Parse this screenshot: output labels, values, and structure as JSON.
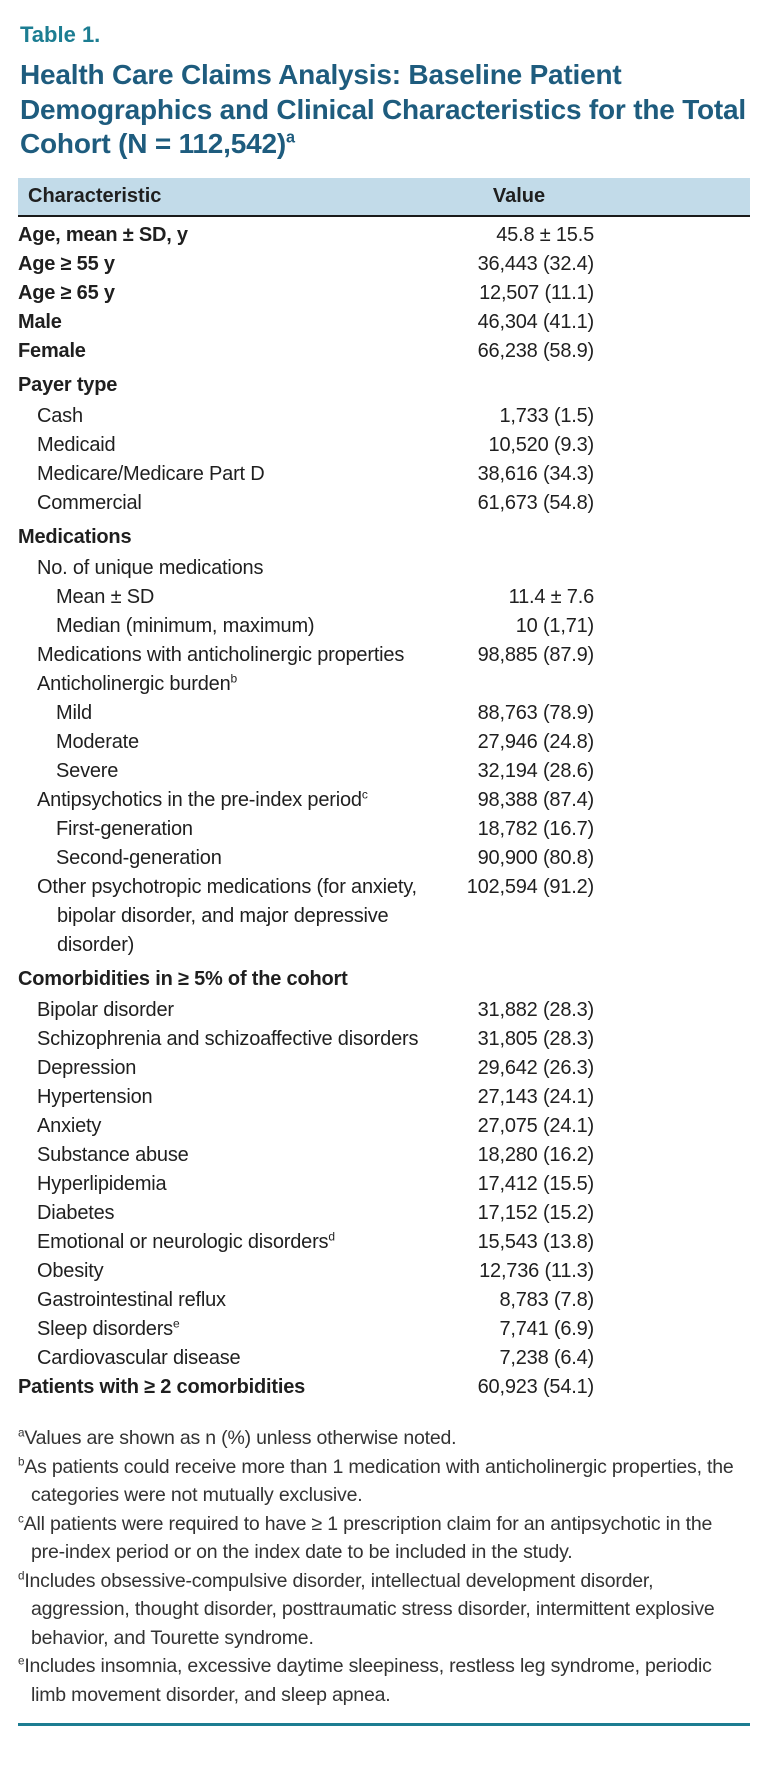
{
  "page": {
    "table_label": "Table 1.",
    "title": "Health Care Claims Analysis: Baseline Patient Demographics and Clinical Characteristics for the Total Cohort (N = 112,542)",
    "title_sup": "a"
  },
  "colors": {
    "accent_teal": "#1c7d92",
    "title_blue": "#1e5c7e",
    "header_bg": "#c2dbe9"
  },
  "table": {
    "columns": [
      "Characteristic",
      "Value"
    ],
    "rows": [
      {
        "label": "Age, mean ± SD, y",
        "value": "45.8 ± 15.5",
        "indent": 0,
        "bold": true
      },
      {
        "label": "Age ≥ 55 y",
        "value": "36,443 (32.4)",
        "indent": 0,
        "bold": true
      },
      {
        "label": "Age ≥ 65 y",
        "value": "12,507 (11.1)",
        "indent": 0,
        "bold": true
      },
      {
        "label": "Male",
        "value": "46,304 (41.1)",
        "indent": 0,
        "bold": true
      },
      {
        "label": "Female",
        "value": "66,238 (58.9)",
        "indent": 0,
        "bold": true
      },
      {
        "label": "Payer type",
        "value": "",
        "indent": 0,
        "bold": true,
        "section": true
      },
      {
        "label": "Cash",
        "value": "1,733 (1.5)",
        "indent": 1
      },
      {
        "label": "Medicaid",
        "value": "10,520 (9.3)",
        "indent": 1
      },
      {
        "label": "Medicare/Medicare Part D",
        "value": "38,616 (34.3)",
        "indent": 1
      },
      {
        "label": "Commercial",
        "value": "61,673 (54.8)",
        "indent": 1
      },
      {
        "label": "Medications",
        "value": "",
        "indent": 0,
        "bold": true,
        "section": true
      },
      {
        "label": "No. of unique medications",
        "value": "",
        "indent": 1
      },
      {
        "label": "Mean ± SD",
        "value": "11.4 ± 7.6",
        "indent": 2
      },
      {
        "label": "Median (minimum, maximum)",
        "value": "10 (1,71)",
        "indent": 2
      },
      {
        "label": "Medications with anticholinergic properties",
        "value": "98,885 (87.9)",
        "indent": 1
      },
      {
        "label": "Anticholinergic burden",
        "sup": "b",
        "value": "",
        "indent": 1
      },
      {
        "label": "Mild",
        "value": "88,763 (78.9)",
        "indent": 2
      },
      {
        "label": "Moderate",
        "value": "27,946 (24.8)",
        "indent": 2
      },
      {
        "label": "Severe",
        "value": "32,194 (28.6)",
        "indent": 2
      },
      {
        "label": "Antipsychotics in the pre-index period",
        "sup": "c",
        "value": "98,388 (87.4)",
        "indent": 1
      },
      {
        "label": "First-generation",
        "value": "18,782 (16.7)",
        "indent": 2
      },
      {
        "label": "Second-generation",
        "value": "90,900 (80.8)",
        "indent": 2
      },
      {
        "label": "Other psychotropic medications (for anxiety, bipolar disorder, and major depressive disorder)",
        "value": "102,594 (91.2)",
        "indent": 1
      },
      {
        "label": "Comorbidities in ≥ 5% of the cohort",
        "value": "",
        "indent": 0,
        "bold": true,
        "section": true
      },
      {
        "label": "Bipolar disorder",
        "value": "31,882 (28.3)",
        "indent": 1
      },
      {
        "label": "Schizophrenia and schizoaffective disorders",
        "value": "31,805 (28.3)",
        "indent": 1
      },
      {
        "label": "Depression",
        "value": "29,642 (26.3)",
        "indent": 1
      },
      {
        "label": "Hypertension",
        "value": "27,143 (24.1)",
        "indent": 1
      },
      {
        "label": "Anxiety",
        "value": "27,075 (24.1)",
        "indent": 1
      },
      {
        "label": "Substance abuse",
        "value": "18,280 (16.2)",
        "indent": 1
      },
      {
        "label": "Hyperlipidemia",
        "value": "17,412 (15.5)",
        "indent": 1
      },
      {
        "label": "Diabetes",
        "value": "17,152 (15.2)",
        "indent": 1
      },
      {
        "label": "Emotional or neurologic disorders",
        "sup": "d",
        "value": "15,543 (13.8)",
        "indent": 1
      },
      {
        "label": "Obesity",
        "value": "12,736 (11.3)",
        "indent": 1
      },
      {
        "label": "Gastrointestinal reflux",
        "value": "8,783 (7.8)",
        "indent": 1
      },
      {
        "label": "Sleep disorders",
        "sup": "e",
        "value": "7,741 (6.9)",
        "indent": 1
      },
      {
        "label": "Cardiovascular disease",
        "value": "7,238 (6.4)",
        "indent": 1
      },
      {
        "label": "Patients with ≥ 2 comorbidities",
        "value": "60,923 (54.1)",
        "indent": 0,
        "bold": true
      }
    ]
  },
  "footnotes": [
    {
      "marker": "a",
      "text": "Values are shown as n (%) unless otherwise noted."
    },
    {
      "marker": "b",
      "text": "As patients could receive more than 1 medication with anticholinergic properties, the categories were not mutually exclusive."
    },
    {
      "marker": "c",
      "text": "All patients were required to have ≥ 1 prescription claim for an antipsychotic in the pre-index period or on the index date to be included in the study."
    },
    {
      "marker": "d",
      "text": "Includes obsessive-compulsive disorder, intellectual development disorder, aggression, thought disorder, posttraumatic stress disorder, intermittent explosive behavior, and Tourette syndrome."
    },
    {
      "marker": "e",
      "text": "Includes insomnia, excessive daytime sleepiness, restless leg syndrome, periodic limb movement disorder, and sleep apnea."
    }
  ]
}
